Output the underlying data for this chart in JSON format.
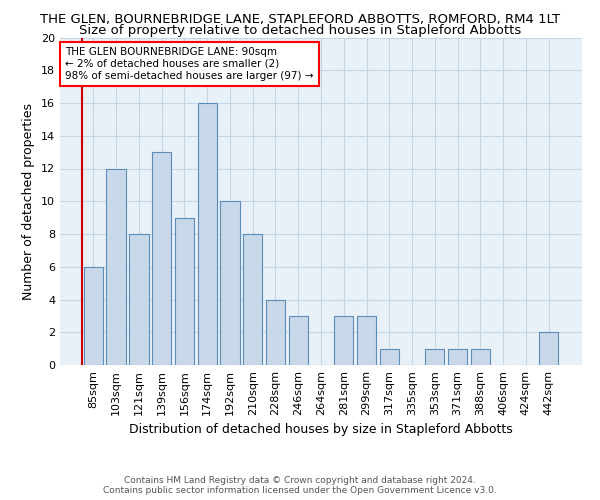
{
  "title": "THE GLEN, BOURNEBRIDGE LANE, STAPLEFORD ABBOTTS, ROMFORD, RM4 1LT",
  "subtitle": "Size of property relative to detached houses in Stapleford Abbotts",
  "xlabel": "Distribution of detached houses by size in Stapleford Abbotts",
  "ylabel": "Number of detached properties",
  "categories": [
    "85sqm",
    "103sqm",
    "121sqm",
    "139sqm",
    "156sqm",
    "174sqm",
    "192sqm",
    "210sqm",
    "228sqm",
    "246sqm",
    "264sqm",
    "281sqm",
    "299sqm",
    "317sqm",
    "335sqm",
    "353sqm",
    "371sqm",
    "388sqm",
    "406sqm",
    "424sqm",
    "442sqm"
  ],
  "values": [
    6,
    12,
    8,
    13,
    9,
    16,
    10,
    8,
    4,
    3,
    0,
    3,
    3,
    1,
    0,
    1,
    1,
    1,
    0,
    0,
    2
  ],
  "bar_color": "#c8d8e8",
  "bar_edge_color": "#5b8db8",
  "ylim": [
    0,
    20
  ],
  "yticks": [
    0,
    2,
    4,
    6,
    8,
    10,
    12,
    14,
    16,
    18,
    20
  ],
  "marker_color": "#cc0000",
  "annotation_line1": "THE GLEN BOURNEBRIDGE LANE: 90sqm",
  "annotation_line2": "← 2% of detached houses are smaller (2)",
  "annotation_line3": "98% of semi-detached houses are larger (97) →",
  "footer1": "Contains HM Land Registry data © Crown copyright and database right 2024.",
  "footer2": "Contains public sector information licensed under the Open Government Licence v3.0.",
  "bg_color": "#ffffff",
  "plot_bg_color": "#e8f0f8",
  "grid_color": "#c5d5e5",
  "title_fontsize": 9.5,
  "subtitle_fontsize": 9.5,
  "axis_label_fontsize": 9,
  "tick_fontsize": 8,
  "footer_fontsize": 6.5
}
